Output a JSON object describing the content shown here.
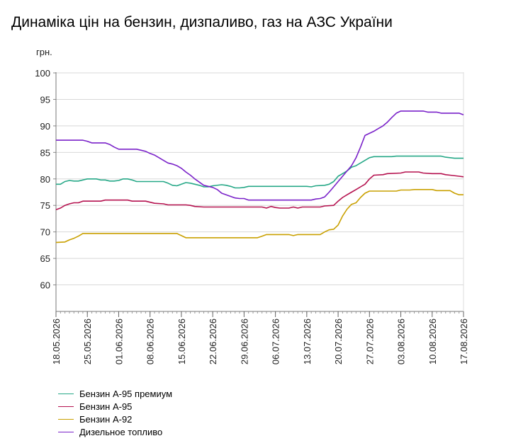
{
  "title": "Динаміка цін на бензин, дизпаливо, газ на АЗС України",
  "chart_data": {
    "type": "line",
    "title": "Динаміка цін на бензин, дизпаливо, газ на АЗС України",
    "ylabel": "грн.",
    "xlabel": "",
    "ylim": [
      55,
      100
    ],
    "y_ticks": [
      60,
      65,
      70,
      75,
      80,
      85,
      90,
      95,
      100
    ],
    "x_tick_labels": [
      "18.05.2026",
      "25.05.2026",
      "01.06.2026",
      "08.06.2026",
      "15.06.2026",
      "22.06.2026",
      "29.06.2026",
      "06.07.2026",
      "13.07.2026",
      "20.07.2026",
      "27.07.2026",
      "03.08.2026",
      "10.08.2026",
      "17.08.2026"
    ],
    "x_days": [
      0,
      91
    ],
    "grid": "horizontal",
    "legend_position": "bottom-left",
    "series": [
      {
        "name": "Бензин А-95 премиум",
        "color": "#26a887",
        "points": [
          [
            0,
            79
          ],
          [
            1,
            79
          ],
          [
            2,
            79.5
          ],
          [
            3,
            79.7
          ],
          [
            4,
            79.6
          ],
          [
            5,
            79.6
          ],
          [
            6,
            79.8
          ],
          [
            7,
            80
          ],
          [
            9,
            80
          ],
          [
            10,
            79.8
          ],
          [
            11,
            79.8
          ],
          [
            12,
            79.6
          ],
          [
            13,
            79.6
          ],
          [
            14,
            79.7
          ],
          [
            15,
            80
          ],
          [
            16,
            80
          ],
          [
            17,
            79.8
          ],
          [
            18,
            79.5
          ],
          [
            24,
            79.5
          ],
          [
            25,
            79.2
          ],
          [
            26,
            78.8
          ],
          [
            27,
            78.7
          ],
          [
            28,
            79
          ],
          [
            29,
            79.3
          ],
          [
            30,
            79.2
          ],
          [
            31,
            79
          ],
          [
            32,
            78.8
          ],
          [
            33,
            78.5
          ],
          [
            34,
            78.5
          ],
          [
            35,
            78.7
          ],
          [
            37,
            78.9
          ],
          [
            38,
            78.8
          ],
          [
            39,
            78.6
          ],
          [
            40,
            78.3
          ],
          [
            41,
            78.3
          ],
          [
            42,
            78.4
          ],
          [
            43,
            78.6
          ],
          [
            48,
            78.6
          ],
          [
            56,
            78.6
          ],
          [
            57,
            78.5
          ],
          [
            58,
            78.7
          ],
          [
            60,
            78.8
          ],
          [
            61,
            79
          ],
          [
            62,
            79.5
          ],
          [
            63,
            80.5
          ],
          [
            64,
            81
          ],
          [
            65,
            81.5
          ],
          [
            66,
            82.2
          ],
          [
            67,
            82.5
          ],
          [
            68,
            83
          ],
          [
            69,
            83.5
          ],
          [
            70,
            84
          ],
          [
            71,
            84.2
          ],
          [
            75,
            84.2
          ],
          [
            76,
            84.3
          ],
          [
            86,
            84.3
          ],
          [
            87,
            84.1
          ],
          [
            88,
            84
          ],
          [
            89,
            83.9
          ],
          [
            91,
            83.9
          ]
        ]
      },
      {
        "name": "Бензин А-95",
        "color": "#b5124f",
        "points": [
          [
            0,
            74.2
          ],
          [
            1,
            74.5
          ],
          [
            2,
            75
          ],
          [
            3,
            75.3
          ],
          [
            4,
            75.5
          ],
          [
            5,
            75.5
          ],
          [
            6,
            75.8
          ],
          [
            10,
            75.8
          ],
          [
            11,
            76
          ],
          [
            16,
            76
          ],
          [
            17,
            75.8
          ],
          [
            20,
            75.8
          ],
          [
            21,
            75.6
          ],
          [
            22,
            75.4
          ],
          [
            24,
            75.3
          ],
          [
            25,
            75.1
          ],
          [
            29,
            75.1
          ],
          [
            30,
            75
          ],
          [
            31,
            74.8
          ],
          [
            33,
            74.7
          ],
          [
            46,
            74.7
          ],
          [
            47,
            74.5
          ],
          [
            48,
            74.8
          ],
          [
            49,
            74.6
          ],
          [
            50,
            74.5
          ],
          [
            52,
            74.5
          ],
          [
            53,
            74.7
          ],
          [
            54,
            74.5
          ],
          [
            55,
            74.7
          ],
          [
            59,
            74.7
          ],
          [
            60,
            74.9
          ],
          [
            62,
            75
          ],
          [
            63,
            75.8
          ],
          [
            64,
            76.5
          ],
          [
            65,
            77
          ],
          [
            66,
            77.5
          ],
          [
            67,
            78
          ],
          [
            68,
            78.5
          ],
          [
            69,
            79
          ],
          [
            70,
            80
          ],
          [
            71,
            80.7
          ],
          [
            73,
            80.8
          ],
          [
            74,
            81
          ],
          [
            77,
            81.1
          ],
          [
            78,
            81.3
          ],
          [
            81,
            81.3
          ],
          [
            82,
            81.1
          ],
          [
            84,
            81
          ],
          [
            86,
            81
          ],
          [
            87,
            80.8
          ],
          [
            88,
            80.7
          ],
          [
            90,
            80.5
          ],
          [
            91,
            80.4
          ]
        ]
      },
      {
        "name": "Бензин А-92",
        "color": "#c9a000",
        "points": [
          [
            0,
            68
          ],
          [
            2,
            68.1
          ],
          [
            3,
            68.5
          ],
          [
            4,
            68.8
          ],
          [
            5,
            69.2
          ],
          [
            6,
            69.7
          ],
          [
            27,
            69.7
          ],
          [
            28,
            69.3
          ],
          [
            29,
            68.9
          ],
          [
            45,
            68.9
          ],
          [
            46,
            69.2
          ],
          [
            47,
            69.5
          ],
          [
            52,
            69.5
          ],
          [
            53,
            69.3
          ],
          [
            54,
            69.5
          ],
          [
            59,
            69.5
          ],
          [
            60,
            70
          ],
          [
            61,
            70.4
          ],
          [
            62,
            70.5
          ],
          [
            63,
            71.3
          ],
          [
            64,
            73
          ],
          [
            65,
            74.3
          ],
          [
            66,
            75.2
          ],
          [
            67,
            75.5
          ],
          [
            68,
            76.5
          ],
          [
            69,
            77.3
          ],
          [
            70,
            77.7
          ],
          [
            76,
            77.7
          ],
          [
            77,
            77.9
          ],
          [
            79,
            77.9
          ],
          [
            80,
            78
          ],
          [
            84,
            78
          ],
          [
            85,
            77.8
          ],
          [
            88,
            77.8
          ],
          [
            89,
            77.3
          ],
          [
            90,
            77
          ],
          [
            91,
            77
          ]
        ]
      },
      {
        "name": "Дизельное топливо",
        "color": "#7a22c9",
        "points": [
          [
            0,
            87.3
          ],
          [
            6,
            87.3
          ],
          [
            7,
            87.1
          ],
          [
            8,
            86.8
          ],
          [
            11,
            86.8
          ],
          [
            12,
            86.5
          ],
          [
            13,
            86
          ],
          [
            14,
            85.6
          ],
          [
            18,
            85.6
          ],
          [
            19,
            85.4
          ],
          [
            20,
            85.2
          ],
          [
            21,
            84.8
          ],
          [
            22,
            84.5
          ],
          [
            23,
            84
          ],
          [
            24,
            83.5
          ],
          [
            25,
            83
          ],
          [
            26,
            82.8
          ],
          [
            27,
            82.5
          ],
          [
            28,
            82
          ],
          [
            29,
            81.3
          ],
          [
            30,
            80.7
          ],
          [
            31,
            80
          ],
          [
            32,
            79.4
          ],
          [
            33,
            78.8
          ],
          [
            34,
            78.6
          ],
          [
            35,
            78.4
          ],
          [
            36,
            78
          ],
          [
            37,
            77.3
          ],
          [
            38,
            77
          ],
          [
            39,
            76.7
          ],
          [
            40,
            76.4
          ],
          [
            41,
            76.3
          ],
          [
            42,
            76.3
          ],
          [
            43,
            76
          ],
          [
            56,
            76
          ],
          [
            57,
            76
          ],
          [
            58,
            76.2
          ],
          [
            59,
            76.3
          ],
          [
            60,
            76.6
          ],
          [
            61,
            77.5
          ],
          [
            62,
            78.5
          ],
          [
            63,
            79.5
          ],
          [
            64,
            80.5
          ],
          [
            65,
            81.5
          ],
          [
            66,
            82.5
          ],
          [
            67,
            84
          ],
          [
            68,
            86
          ],
          [
            69,
            88.2
          ],
          [
            70,
            88.6
          ],
          [
            71,
            89
          ],
          [
            72,
            89.5
          ],
          [
            73,
            90
          ],
          [
            74,
            90.7
          ],
          [
            75,
            91.6
          ],
          [
            76,
            92.4
          ],
          [
            77,
            92.8
          ],
          [
            82,
            92.8
          ],
          [
            83,
            92.6
          ],
          [
            85,
            92.6
          ],
          [
            86,
            92.4
          ],
          [
            90,
            92.4
          ],
          [
            91,
            92.1
          ]
        ]
      }
    ]
  }
}
